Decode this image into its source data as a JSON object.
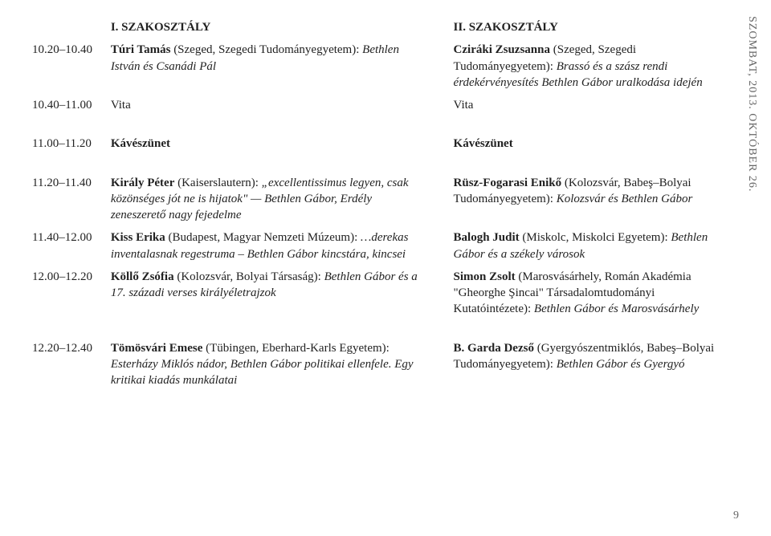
{
  "sideText": "SZOMBAT, 2013. OKTÓBER 26.",
  "pageNumber": "9",
  "headers": {
    "left": "I. SZAKOSZTÁLY",
    "right": "II. SZAKOSZTÁLY"
  },
  "rows": [
    {
      "time": "10.20–10.40",
      "leftBold": "Túri Tamás",
      "leftRest": " (Szeged, Szegedi Tudományegyetem): ",
      "leftItalic": "Bethlen István és Csanádi Pál",
      "rightBold": "Cziráki Zsuzsanna",
      "rightRest": " (Szeged, Szegedi Tudományegyetem): ",
      "rightItalic": "Brassó és a szász rendi érdekérvényesítés Bethlen Gábor uralkodása idején"
    },
    {
      "time": "10.40–11.00",
      "leftPlain": "Vita",
      "rightPlain": "Vita"
    },
    {
      "spacer": true
    },
    {
      "time": "11.00–11.20",
      "leftBold": "Kávészünet",
      "rightBold": "Kávészünet"
    },
    {
      "spacer": true
    },
    {
      "time": "11.20–11.40",
      "leftBold": "Király Péter",
      "leftRest": " (Kaiserslautern): ",
      "leftItalic": "„excellentissimus legyen, csak közönséges jót ne is hijatok\" — Bethlen Gábor, Erdély zeneszerető nagy fejedelme",
      "rightBold": "Rüsz-Fogarasi Enikő",
      "rightRest": " (Kolozsvár, Babeş–Bolyai Tudományegyetem): ",
      "rightItalic": "Kolozsvár és Bethlen Gábor"
    },
    {
      "time": "11.40–12.00",
      "leftBold": "Kiss Erika",
      "leftRest": " (Budapest, Magyar Nemzeti Múzeum): ",
      "leftItalic": "…derekas inventalasnak regestruma – Bethlen Gábor kincstára, kincsei",
      "rightBold": "Balogh Judit",
      "rightRest": " (Miskolc, Miskolci Egyetem): ",
      "rightItalic": "Bethlen Gábor és a székely városok"
    },
    {
      "time": "12.00–12.20",
      "leftBold": "Köllő Zsófia",
      "leftRest": " (Kolozsvár, Bolyai Társaság): ",
      "leftItalic": "Bethlen Gábor és a 17. századi verses királyéletrajzok",
      "rightBold": "Simon Zsolt",
      "rightRest": " (Marosvásárhely, Román Akadémia \"Gheorghe Şincai\" Társadalomtudományi Kutatóintézete): ",
      "rightItalic": "Bethlen Gábor és Marosvásárhely"
    },
    {
      "spacer": true
    },
    {
      "time": "12.20–12.40",
      "leftBold": "Tömösvári Emese",
      "leftRest": " (Tübingen, Eberhard-Karls Egyetem): ",
      "leftItalic": "Esterházy Miklós nádor, Bethlen Gábor politikai ellenfele. Egy kritikai kiadás munkálatai",
      "rightBold": "B. Garda Dezső",
      "rightRest": " (Gyergyószentmiklós, Babeş–Bolyai Tudományegyetem): ",
      "rightItalic": "Bethlen Gábor és Gyergyó"
    }
  ]
}
